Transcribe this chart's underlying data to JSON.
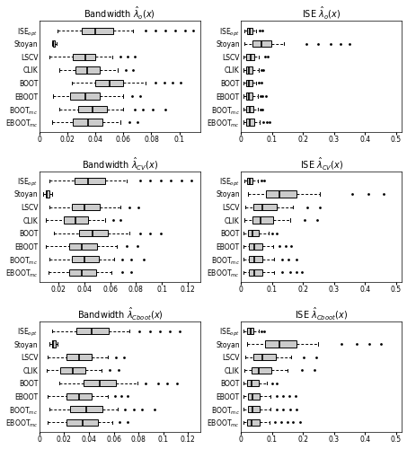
{
  "ylabel_display": [
    "ISE$_{opt}$",
    "Stoyan",
    "LSCV",
    "CLIK",
    "BOOT",
    "EBOOT",
    "BOOT$_{mc}$",
    "EBOOT$_{mc}$"
  ],
  "titles": [
    "Bandwidth $\\hat{\\lambda}_o(x)$",
    "ISE $\\hat{\\lambda}_o(x)$",
    "Bandwidth $\\hat{\\lambda}_{CV}(x)$",
    "ISE $\\hat{\\lambda}_{CV}(x)$",
    "Bandwidth $\\hat{\\lambda}_{Cboot}(x)$",
    "ISE $\\hat{\\lambda}_{Cboot}(x)$"
  ],
  "box_color": "#cccccc",
  "flier_color": "black",
  "bw_row1": {
    "ISE_opt": {
      "q1": 0.03,
      "med": 0.04,
      "q3": 0.053,
      "wlo": 0.013,
      "whi": 0.067,
      "fliers": [
        0.076,
        0.083,
        0.09,
        0.097,
        0.104,
        0.11
      ]
    },
    "Stoyan": {
      "q1": 0.0095,
      "med": 0.01,
      "q3": 0.011,
      "wlo": 0.009,
      "whi": 0.012,
      "fliers": []
    },
    "LSCV": {
      "q1": 0.024,
      "med": 0.033,
      "q3": 0.04,
      "wlo": 0.007,
      "whi": 0.052,
      "fliers": [
        0.058,
        0.063,
        0.068
      ]
    },
    "CLIK": {
      "q1": 0.026,
      "med": 0.034,
      "q3": 0.043,
      "wlo": 0.014,
      "whi": 0.056,
      "fliers": [
        0.062,
        0.067
      ]
    },
    "BOOT": {
      "q1": 0.04,
      "med": 0.05,
      "q3": 0.06,
      "wlo": 0.023,
      "whi": 0.076,
      "fliers": [
        0.083,
        0.089,
        0.095,
        0.101
      ]
    },
    "EBOOT": {
      "q1": 0.022,
      "med": 0.033,
      "q3": 0.043,
      "wlo": 0.01,
      "whi": 0.06,
      "fliers": [
        0.066,
        0.072
      ]
    },
    "BOOT_mc": {
      "q1": 0.028,
      "med": 0.038,
      "q3": 0.048,
      "wlo": 0.014,
      "whi": 0.06,
      "fliers": [
        0.068,
        0.074,
        0.081,
        0.09
      ]
    },
    "EBOOT_mc": {
      "q1": 0.024,
      "med": 0.035,
      "q3": 0.045,
      "wlo": 0.009,
      "whi": 0.058,
      "fliers": [
        0.064,
        0.07
      ]
    }
  },
  "ise_row1": {
    "ISE_opt": {
      "q1": 0.02,
      "med": 0.028,
      "q3": 0.038,
      "wlo": 0.012,
      "whi": 0.05,
      "fliers": [
        0.06,
        0.068
      ]
    },
    "Stoyan": {
      "q1": 0.038,
      "med": 0.065,
      "q3": 0.098,
      "wlo": 0.01,
      "whi": 0.14,
      "fliers": [
        0.21,
        0.25,
        0.29,
        0.32,
        0.35
      ]
    },
    "LSCV": {
      "q1": 0.018,
      "med": 0.03,
      "q3": 0.043,
      "wlo": 0.007,
      "whi": 0.058,
      "fliers": [
        0.077,
        0.087
      ]
    },
    "CLIK": {
      "q1": 0.016,
      "med": 0.026,
      "q3": 0.038,
      "wlo": 0.007,
      "whi": 0.056,
      "fliers": [
        0.065,
        0.073
      ]
    },
    "BOOT": {
      "q1": 0.016,
      "med": 0.025,
      "q3": 0.036,
      "wlo": 0.007,
      "whi": 0.05,
      "fliers": [
        0.058,
        0.065
      ]
    },
    "EBOOT": {
      "q1": 0.016,
      "med": 0.026,
      "q3": 0.038,
      "wlo": 0.007,
      "whi": 0.055,
      "fliers": [
        0.063,
        0.07,
        0.08
      ]
    },
    "BOOT_mc": {
      "q1": 0.018,
      "med": 0.028,
      "q3": 0.04,
      "wlo": 0.007,
      "whi": 0.055,
      "fliers": [
        0.063,
        0.07
      ]
    },
    "EBOOT_mc": {
      "q1": 0.018,
      "med": 0.028,
      "q3": 0.043,
      "wlo": 0.007,
      "whi": 0.06,
      "fliers": [
        0.073,
        0.083,
        0.093
      ]
    }
  },
  "bw_row2": {
    "ISE_opt": {
      "q1": 0.032,
      "med": 0.043,
      "q3": 0.056,
      "wlo": 0.013,
      "whi": 0.073,
      "fliers": [
        0.083,
        0.091,
        0.099,
        0.107,
        0.115,
        0.123
      ]
    },
    "Stoyan": {
      "q1": 0.01,
      "med": 0.011,
      "q3": 0.013,
      "wlo": 0.008,
      "whi": 0.015,
      "fliers": []
    },
    "LSCV": {
      "q1": 0.03,
      "med": 0.04,
      "q3": 0.052,
      "wlo": 0.013,
      "whi": 0.068,
      "fliers": [
        0.075,
        0.082
      ]
    },
    "CLIK": {
      "q1": 0.024,
      "med": 0.033,
      "q3": 0.043,
      "wlo": 0.01,
      "whi": 0.056,
      "fliers": [
        0.062,
        0.068
      ]
    },
    "BOOT": {
      "q1": 0.036,
      "med": 0.046,
      "q3": 0.058,
      "wlo": 0.016,
      "whi": 0.075,
      "fliers": [
        0.083,
        0.091,
        0.099
      ]
    },
    "EBOOT": {
      "q1": 0.028,
      "med": 0.038,
      "q3": 0.05,
      "wlo": 0.01,
      "whi": 0.065,
      "fliers": [
        0.073,
        0.081
      ]
    },
    "BOOT_mc": {
      "q1": 0.03,
      "med": 0.04,
      "q3": 0.051,
      "wlo": 0.013,
      "whi": 0.063,
      "fliers": [
        0.069,
        0.076,
        0.086
      ]
    },
    "EBOOT_mc": {
      "q1": 0.028,
      "med": 0.038,
      "q3": 0.049,
      "wlo": 0.012,
      "whi": 0.061,
      "fliers": [
        0.069,
        0.076
      ]
    }
  },
  "ise_row2": {
    "ISE_opt": {
      "q1": 0.02,
      "med": 0.028,
      "q3": 0.038,
      "wlo": 0.01,
      "whi": 0.055,
      "fliers": [
        0.066,
        0.074
      ]
    },
    "Stoyan": {
      "q1": 0.08,
      "med": 0.125,
      "q3": 0.18,
      "wlo": 0.022,
      "whi": 0.255,
      "fliers": [
        0.36,
        0.41,
        0.46
      ]
    },
    "LSCV": {
      "q1": 0.04,
      "med": 0.068,
      "q3": 0.115,
      "wlo": 0.013,
      "whi": 0.168,
      "fliers": [
        0.215,
        0.255
      ]
    },
    "CLIK": {
      "q1": 0.036,
      "med": 0.063,
      "q3": 0.105,
      "wlo": 0.01,
      "whi": 0.16,
      "fliers": [
        0.205,
        0.245
      ]
    },
    "BOOT": {
      "q1": 0.022,
      "med": 0.038,
      "q3": 0.058,
      "wlo": 0.008,
      "whi": 0.088,
      "fliers": [
        0.1,
        0.115
      ]
    },
    "EBOOT": {
      "q1": 0.025,
      "med": 0.043,
      "q3": 0.068,
      "wlo": 0.008,
      "whi": 0.103,
      "fliers": [
        0.123,
        0.143,
        0.163
      ]
    },
    "BOOT_mc": {
      "q1": 0.025,
      "med": 0.043,
      "q3": 0.07,
      "wlo": 0.008,
      "whi": 0.108,
      "fliers": [
        0.133,
        0.153,
        0.178
      ]
    },
    "EBOOT_mc": {
      "q1": 0.025,
      "med": 0.043,
      "q3": 0.07,
      "wlo": 0.008,
      "whi": 0.108,
      "fliers": [
        0.133,
        0.158,
        0.178,
        0.198
      ]
    }
  },
  "bw_row3": {
    "ISE_opt": {
      "q1": 0.03,
      "med": 0.042,
      "q3": 0.056,
      "wlo": 0.01,
      "whi": 0.073,
      "fliers": [
        0.081,
        0.089,
        0.097,
        0.105,
        0.113
      ]
    },
    "Stoyan": {
      "q1": 0.01,
      "med": 0.011,
      "q3": 0.013,
      "wlo": 0.008,
      "whi": 0.015,
      "fliers": []
    },
    "LSCV": {
      "q1": 0.022,
      "med": 0.032,
      "q3": 0.042,
      "wlo": 0.007,
      "whi": 0.055,
      "fliers": [
        0.062,
        0.068
      ]
    },
    "CLIK": {
      "q1": 0.017,
      "med": 0.027,
      "q3": 0.037,
      "wlo": 0.006,
      "whi": 0.05,
      "fliers": [
        0.057,
        0.064
      ]
    },
    "BOOT": {
      "q1": 0.036,
      "med": 0.049,
      "q3": 0.062,
      "wlo": 0.016,
      "whi": 0.079,
      "fliers": [
        0.086,
        0.096,
        0.103,
        0.111
      ]
    },
    "EBOOT": {
      "q1": 0.022,
      "med": 0.032,
      "q3": 0.042,
      "wlo": 0.007,
      "whi": 0.055,
      "fliers": [
        0.061,
        0.066,
        0.071
      ]
    },
    "BOOT_mc": {
      "q1": 0.025,
      "med": 0.038,
      "q3": 0.051,
      "wlo": 0.008,
      "whi": 0.063,
      "fliers": [
        0.069,
        0.076,
        0.083,
        0.093
      ]
    },
    "EBOOT_mc": {
      "q1": 0.022,
      "med": 0.035,
      "q3": 0.047,
      "wlo": 0.007,
      "whi": 0.059,
      "fliers": [
        0.065,
        0.071
      ]
    }
  },
  "ise_row3": {
    "ISE_opt": {
      "q1": 0.02,
      "med": 0.03,
      "q3": 0.04,
      "wlo": 0.009,
      "whi": 0.056,
      "fliers": [
        0.066,
        0.076
      ]
    },
    "Stoyan": {
      "q1": 0.078,
      "med": 0.123,
      "q3": 0.178,
      "wlo": 0.019,
      "whi": 0.248,
      "fliers": [
        0.323,
        0.373,
        0.413,
        0.453
      ]
    },
    "LSCV": {
      "q1": 0.04,
      "med": 0.068,
      "q3": 0.113,
      "wlo": 0.013,
      "whi": 0.163,
      "fliers": [
        0.203,
        0.243
      ]
    },
    "CLIK": {
      "q1": 0.033,
      "med": 0.058,
      "q3": 0.098,
      "wlo": 0.011,
      "whi": 0.151,
      "fliers": [
        0.198,
        0.238
      ]
    },
    "BOOT": {
      "q1": 0.02,
      "med": 0.035,
      "q3": 0.056,
      "wlo": 0.008,
      "whi": 0.083,
      "fliers": [
        0.101,
        0.116
      ]
    },
    "EBOOT": {
      "q1": 0.022,
      "med": 0.038,
      "q3": 0.061,
      "wlo": 0.008,
      "whi": 0.096,
      "fliers": [
        0.116,
        0.136,
        0.156,
        0.176
      ]
    },
    "BOOT_mc": {
      "q1": 0.022,
      "med": 0.038,
      "q3": 0.061,
      "wlo": 0.008,
      "whi": 0.096,
      "fliers": [
        0.116,
        0.136,
        0.159,
        0.179
      ]
    },
    "EBOOT_mc": {
      "q1": 0.02,
      "med": 0.035,
      "q3": 0.059,
      "wlo": 0.008,
      "whi": 0.091,
      "fliers": [
        0.111,
        0.131,
        0.149,
        0.169,
        0.191
      ]
    }
  },
  "configs": [
    {
      "bw_xlim": [
        0.0,
        0.115
      ],
      "bw_xticks": [
        0.0,
        0.02,
        0.04,
        0.06,
        0.08,
        0.1
      ],
      "ise_xlim": [
        0.0,
        0.52
      ],
      "ise_xticks": [
        0.0,
        0.1,
        0.2,
        0.3,
        0.4,
        0.5
      ]
    },
    {
      "bw_xlim": [
        0.005,
        0.13
      ],
      "bw_xticks": [
        0.02,
        0.04,
        0.06,
        0.08,
        0.1,
        0.12
      ],
      "ise_xlim": [
        0.0,
        0.52
      ],
      "ise_xticks": [
        0.0,
        0.1,
        0.2,
        0.3,
        0.4,
        0.5
      ]
    },
    {
      "bw_xlim": [
        0.0,
        0.13
      ],
      "bw_xticks": [
        0.0,
        0.02,
        0.04,
        0.06,
        0.08,
        0.1,
        0.12
      ],
      "ise_xlim": [
        0.0,
        0.52
      ],
      "ise_xticks": [
        0.0,
        0.1,
        0.2,
        0.3,
        0.4,
        0.5
      ]
    }
  ]
}
